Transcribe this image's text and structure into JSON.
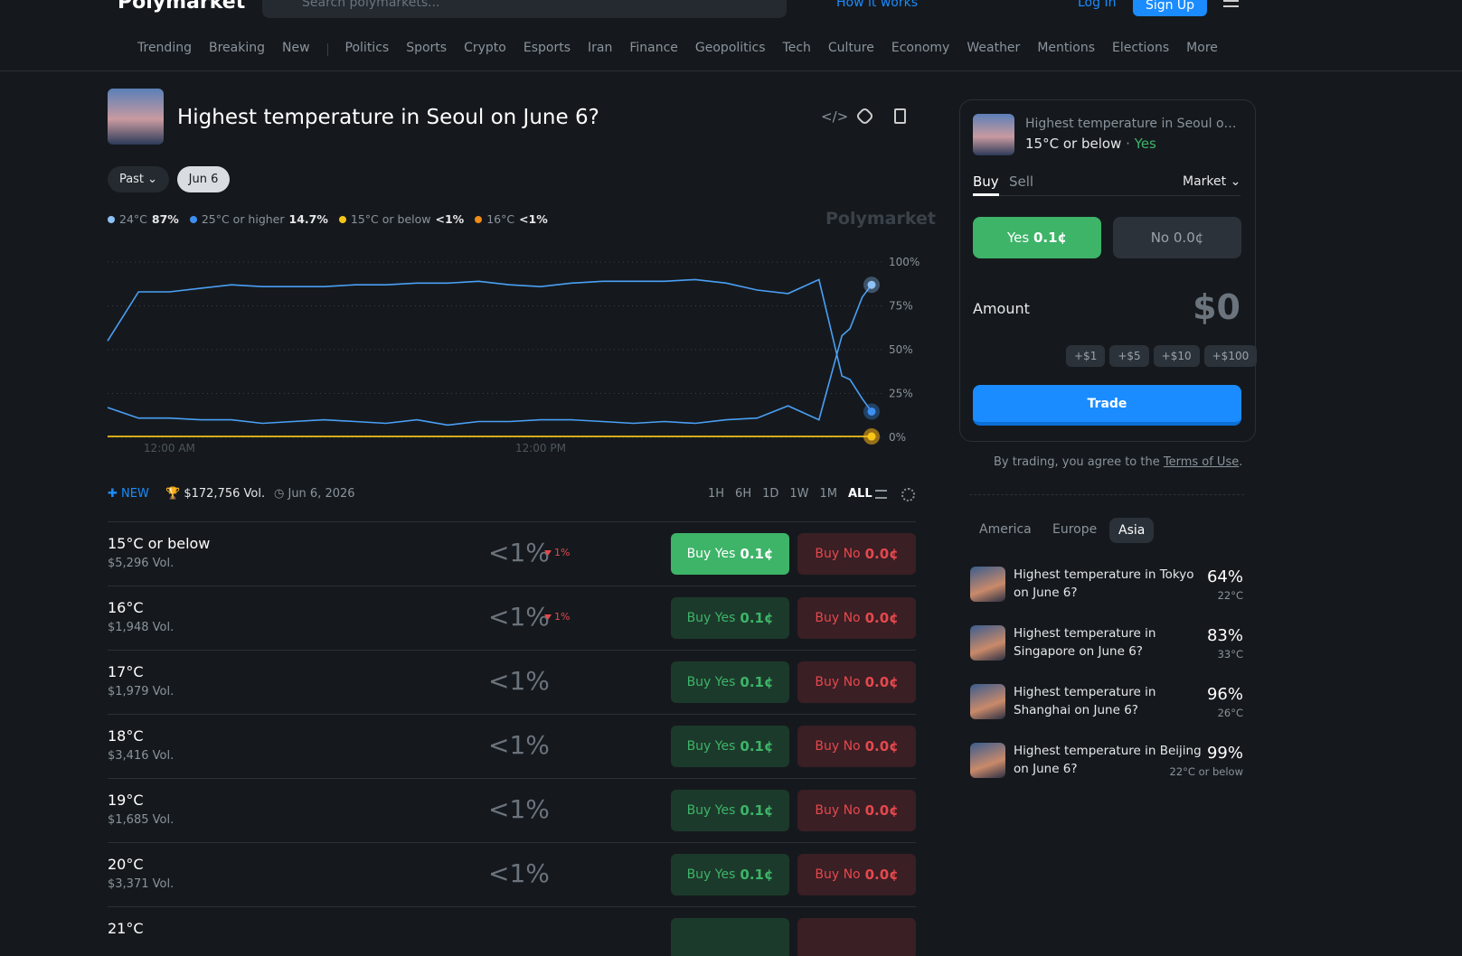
{
  "topbar": {
    "brand": "Polymarket",
    "search_placeholder": "Search polymarkets...",
    "how_it_works": "How it works",
    "log_in": "Log In",
    "sign_up": "Sign Up"
  },
  "nav": [
    "Trending",
    "Breaking",
    "New",
    "Politics",
    "Sports",
    "Crypto",
    "Esports",
    "Iran",
    "Finance",
    "Geopolitics",
    "Tech",
    "Culture",
    "Economy",
    "Weather",
    "Mentions",
    "Elections",
    "More"
  ],
  "market": {
    "title": "Highest temperature in Seoul on June 6?",
    "filters": [
      "Past",
      "Jun 6"
    ],
    "watermark": "Polymarket"
  },
  "chart": {
    "type": "line",
    "x": [
      -2,
      -1,
      0,
      1,
      2,
      3,
      4,
      5,
      6,
      7,
      8,
      9,
      10,
      11,
      12,
      13,
      14,
      15,
      16,
      17,
      18,
      19,
      20,
      21,
      21.74,
      22,
      22.4,
      22.7
    ],
    "xlim": [
      -2,
      22.7
    ],
    "xticks": [
      {
        "value": 0,
        "label": "12:00 AM"
      },
      {
        "value": 12,
        "label": "12:00 PM"
      }
    ],
    "ylim": [
      0,
      100
    ],
    "yticks": [
      {
        "value": 0,
        "label": "0%"
      },
      {
        "value": 25,
        "label": "25%"
      },
      {
        "value": 50,
        "label": "50%"
      },
      {
        "value": 75,
        "label": "75%"
      },
      {
        "value": 100,
        "label": "100%"
      }
    ],
    "grid": true,
    "series": [
      {
        "name": "24°C",
        "current": "87%",
        "color": "#8ec1f5",
        "line": "#4a9ff5",
        "values": [
          17,
          11,
          11,
          10,
          10,
          8,
          9,
          10,
          9,
          8,
          10,
          7,
          9,
          9,
          10,
          10,
          9,
          8,
          9,
          8,
          10,
          11,
          18,
          10,
          58,
          62,
          80,
          87
        ]
      },
      {
        "name": "25°C or higher",
        "current": "14.7%",
        "color": "#3d8ff0",
        "line": "#4a9ff5",
        "values": [
          55,
          83,
          83,
          85,
          87,
          86,
          86,
          86,
          87,
          87,
          88,
          88,
          89,
          87,
          86,
          88,
          89,
          89,
          89,
          90,
          88,
          84,
          82,
          90,
          35,
          33,
          22,
          14.7
        ]
      },
      {
        "name": "15°C or below",
        "current": "<1%",
        "color": "#f5c518",
        "line": "#f5c518",
        "values": [
          0.5,
          0.5,
          0.5,
          0.5,
          0.5,
          0.5,
          0.5,
          0.5,
          0.5,
          0.5,
          0.5,
          0.5,
          0.5,
          0.5,
          0.5,
          0.5,
          0.5,
          0.5,
          0.5,
          0.5,
          0.5,
          0.5,
          0.5,
          0.5,
          0.5,
          0.5,
          0.5,
          0.5
        ]
      },
      {
        "name": "16°C",
        "current": "<1%",
        "color": "#f08c1a",
        "line": "#f08c1a",
        "values": [
          0.5,
          0.5,
          0.5,
          0.5,
          0.5,
          0.5,
          0.5,
          0.5,
          0.5,
          0.5,
          0.5,
          0.5,
          0.5,
          0.5,
          0.5,
          0.5,
          0.5,
          0.5,
          0.5,
          0.5,
          0.5,
          0.5,
          0.5,
          0.5,
          0.5,
          0.5,
          0.5,
          0.5
        ]
      }
    ]
  },
  "stats": {
    "badge": "NEW",
    "volume": "$172,756 Vol.",
    "date": "Jun 6, 2026",
    "ranges": [
      "1H",
      "6H",
      "1D",
      "1W",
      "1M",
      "ALL"
    ]
  },
  "outcome_buttons": {
    "buy_yes": "Buy Yes",
    "buy_no": "Buy No"
  },
  "outcomes": [
    {
      "name": "15°C or below",
      "volume": "$5,296 Vol.",
      "chance": "<1%",
      "change": "1%",
      "yes_price": "0.1¢",
      "no_price": "0.0¢"
    },
    {
      "name": "16°C",
      "volume": "$1,948 Vol.",
      "chance": "<1%",
      "change": "1%",
      "yes_price": "0.1¢",
      "no_price": "0.0¢"
    },
    {
      "name": "17°C",
      "volume": "$1,979 Vol.",
      "chance": "<1%",
      "yes_price": "0.1¢",
      "no_price": "0.0¢"
    },
    {
      "name": "18°C",
      "volume": "$3,416 Vol.",
      "chance": "<1%",
      "yes_price": "0.1¢",
      "no_price": "0.0¢"
    },
    {
      "name": "19°C",
      "volume": "$1,685 Vol.",
      "chance": "<1%",
      "yes_price": "0.1¢",
      "no_price": "0.0¢"
    },
    {
      "name": "20°C",
      "volume": "$3,371 Vol.",
      "chance": "<1%",
      "yes_price": "0.1¢",
      "no_price": "0.0¢"
    },
    {
      "name": "21°C"
    }
  ],
  "trade_panel": {
    "outcome": "15°C or below",
    "side": "Yes",
    "tabs": [
      "Buy",
      "Sell"
    ],
    "order_type": "Market",
    "yes": "Yes",
    "yes_price": "0.1¢",
    "no": "No",
    "no_price": "0.0¢",
    "amount_label": "Amount",
    "amount": "$0",
    "quick": [
      "+$1",
      "+$5",
      "+$10",
      "+$100"
    ],
    "trade": "Trade",
    "terms_prefix": "By trading, you agree to the ",
    "terms_link": "Terms of Use",
    "terms_suffix": "."
  },
  "related": {
    "tabs": [
      "America",
      "Europe",
      "Asia"
    ],
    "items": [
      {
        "title": "Highest temperature in Tokyo on June 6?",
        "chance": "64%",
        "detail": "22°C"
      },
      {
        "title": "Highest temperature in Singapore on June 6?",
        "chance": "83%",
        "detail": "33°C"
      },
      {
        "title": "Highest temperature in Shanghai on June 6?",
        "chance": "96%",
        "detail": "26°C"
      },
      {
        "title": "Highest temperature in Beijing on June 6?",
        "chance": "99%",
        "detail": "22°C or below"
      }
    ]
  }
}
